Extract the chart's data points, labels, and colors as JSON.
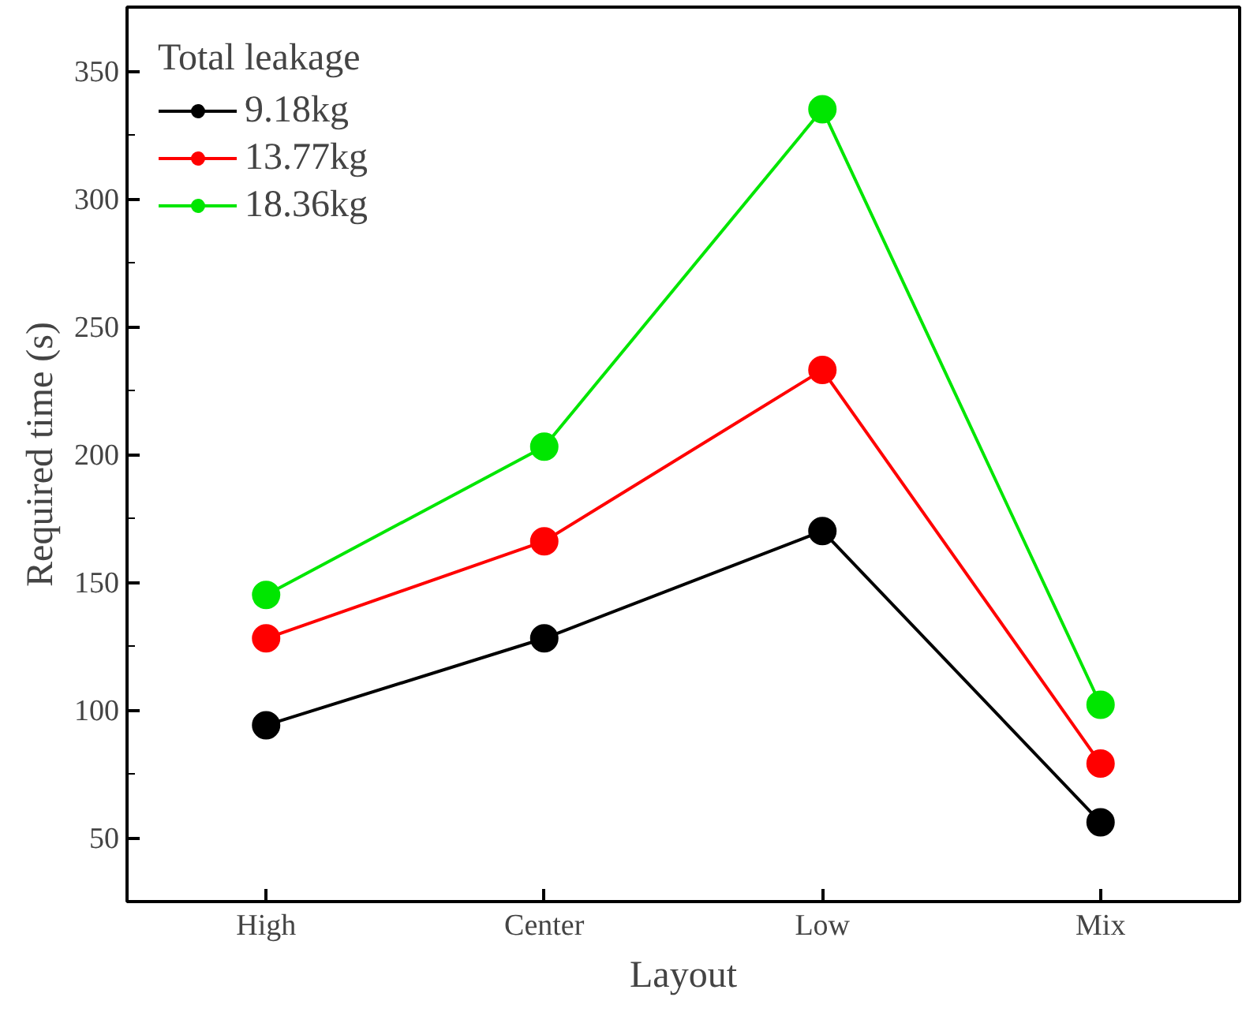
{
  "chart_data": {
    "type": "line",
    "xlabel": "Layout",
    "ylabel": "Required time (s)",
    "legend_title": "Total leakage",
    "categories": [
      "High",
      "Center",
      "Low",
      "Mix"
    ],
    "series": [
      {
        "name": "9.18kg",
        "color": "#000000",
        "values": [
          94,
          128,
          170,
          56
        ]
      },
      {
        "name": "13.77kg",
        "color": "#ff0000",
        "values": [
          128,
          166,
          233,
          79
        ]
      },
      {
        "name": "18.36kg",
        "color": "#00e600",
        "values": [
          145,
          203,
          335,
          102
        ]
      }
    ],
    "ylim": [
      25,
      375
    ],
    "yticks": [
      50,
      100,
      150,
      200,
      250,
      300,
      350
    ],
    "grid": false,
    "legend": "top left",
    "marker": "circle",
    "line_style": "solid"
  }
}
